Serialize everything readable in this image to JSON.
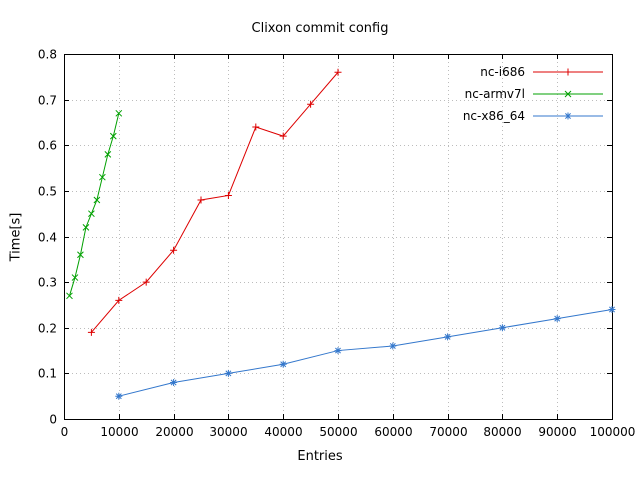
{
  "chart_data": {
    "type": "line",
    "title": "Clixon commit config",
    "xlabel": "Entries",
    "ylabel": "Time[s]",
    "xlim": [
      0,
      100000
    ],
    "ylim": [
      0,
      0.8
    ],
    "xtick_step": 10000,
    "ytick_step": 0.1,
    "grid": true,
    "legend_position": "top-right-inside",
    "series": [
      {
        "name": "nc-i686",
        "color": "#dd0000",
        "marker": "plus",
        "x": [
          5000,
          10000,
          15000,
          20000,
          25000,
          30000,
          35000,
          40000,
          45000,
          50000
        ],
        "y": [
          0.19,
          0.26,
          0.3,
          0.37,
          0.48,
          0.49,
          0.64,
          0.62,
          0.69,
          0.76
        ]
      },
      {
        "name": "nc-armv7l",
        "color": "#00a000",
        "marker": "x",
        "x": [
          1000,
          2000,
          3000,
          4000,
          5000,
          6000,
          7000,
          8000,
          9000,
          10000
        ],
        "y": [
          0.27,
          0.31,
          0.36,
          0.42,
          0.45,
          0.48,
          0.53,
          0.58,
          0.62,
          0.67
        ]
      },
      {
        "name": "nc-x86_64",
        "color": "#3377cc",
        "marker": "asterisk",
        "x": [
          10000,
          20000,
          30000,
          40000,
          50000,
          60000,
          70000,
          80000,
          90000,
          100000
        ],
        "y": [
          0.05,
          0.08,
          0.1,
          0.12,
          0.15,
          0.16,
          0.18,
          0.2,
          0.22,
          0.24
        ]
      }
    ]
  }
}
